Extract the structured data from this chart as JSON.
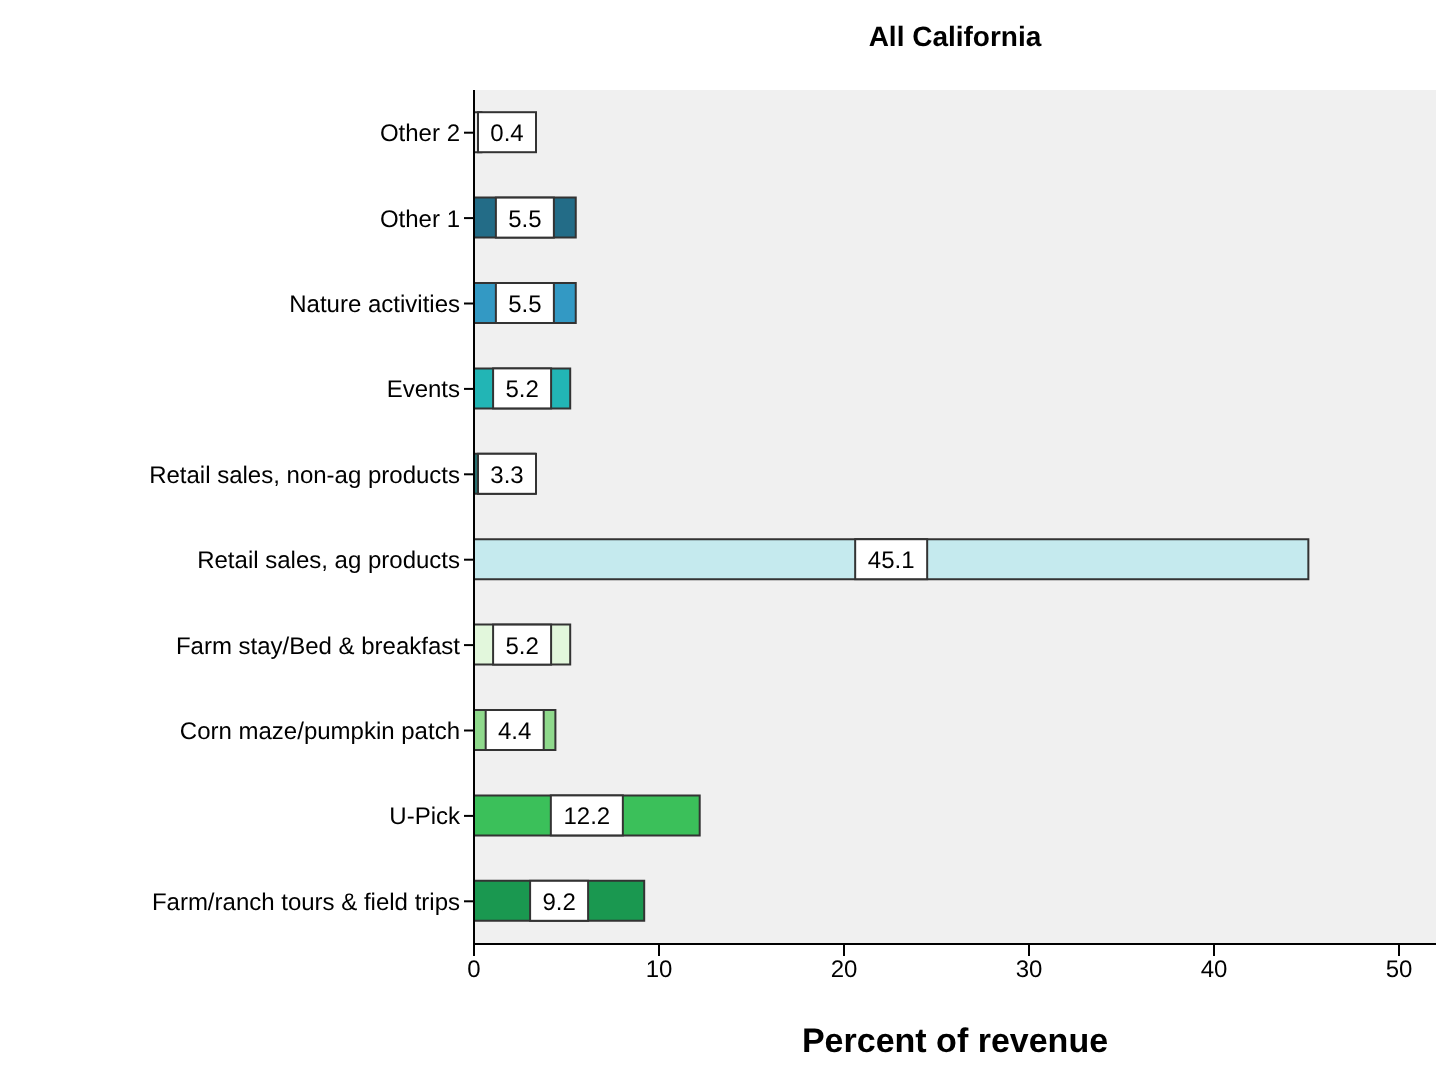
{
  "chart_data": {
    "type": "bar",
    "orientation": "horizontal",
    "title": "All California",
    "xlabel": "Percent of revenue",
    "categories": [
      "Other 2",
      "Other 1",
      "Nature activities",
      "Events",
      "Retail sales, non-ag products",
      "Retail sales, ag products",
      "Farm stay/Bed & breakfast",
      "Corn maze/pumpkin patch",
      "U-Pick",
      "Farm/ranch tours & field trips"
    ],
    "values": [
      0.4,
      5.5,
      5.5,
      5.2,
      3.3,
      45.1,
      5.2,
      4.4,
      12.2,
      9.2
    ],
    "colors": [
      "#e8e8e8",
      "#236c87",
      "#3399c4",
      "#22b5b5",
      "#2a7070",
      "#c5eaee",
      "#e2f7dc",
      "#8fd98c",
      "#3bc05a",
      "#1a9850"
    ],
    "xlim": [
      0,
      52
    ],
    "xticks": [
      0,
      10,
      20,
      30,
      40,
      50
    ],
    "data_labels": true
  }
}
